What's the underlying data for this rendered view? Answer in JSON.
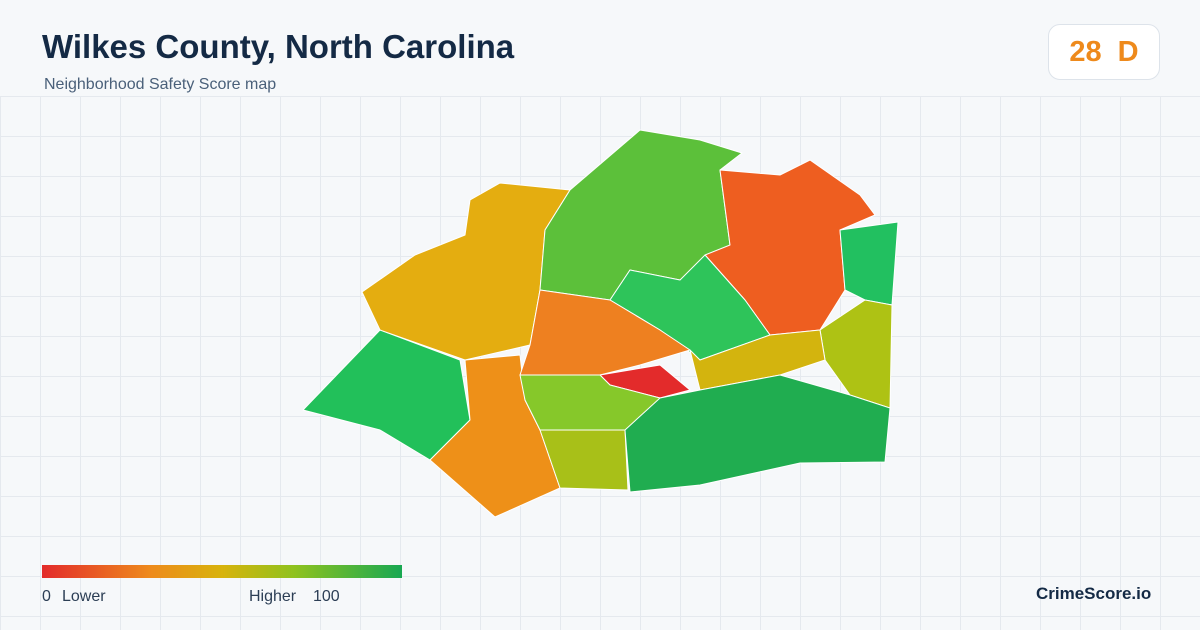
{
  "header": {
    "title": "Wilkes County, North Carolina",
    "subtitle": "Neighborhood Safety Score map"
  },
  "score": {
    "value": "28",
    "grade": "D"
  },
  "legend": {
    "min": "0",
    "min_label": "Lower",
    "max_label": "Higher",
    "max": "100"
  },
  "brand": "CrimeScore.io"
}
